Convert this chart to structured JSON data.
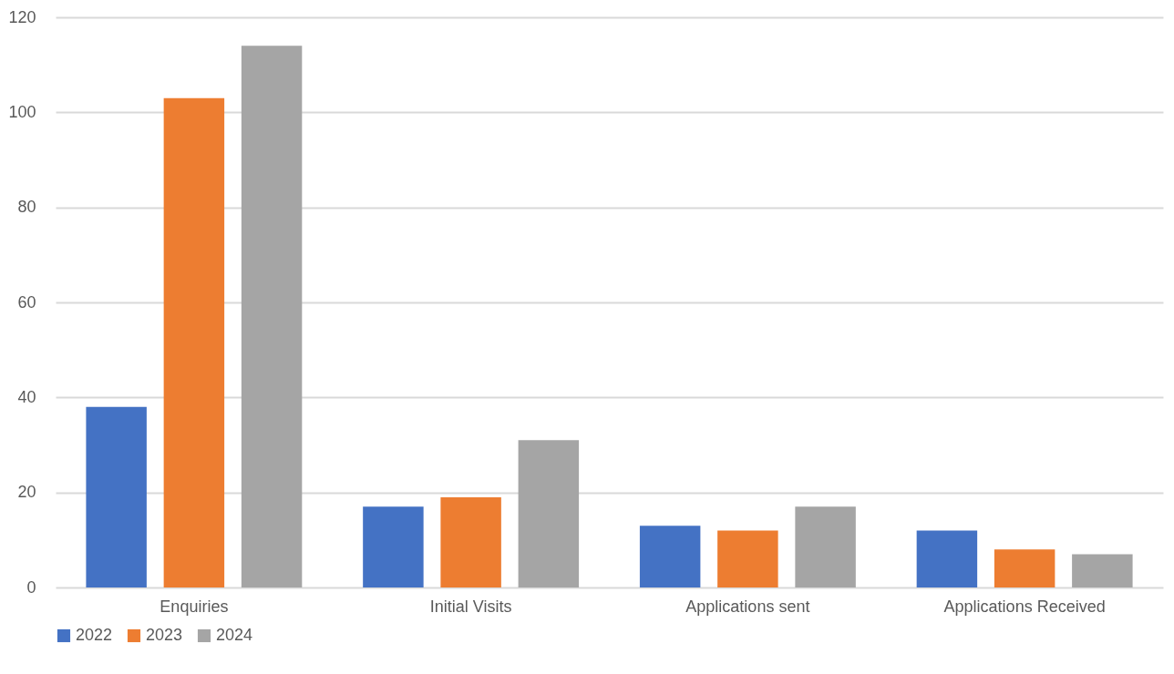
{
  "chart_data": {
    "type": "bar",
    "categories": [
      "Enquiries",
      "Initial Visits",
      "Applications sent",
      "Applications Received"
    ],
    "series": [
      {
        "name": "2022",
        "color": "#4472c4",
        "values": [
          38,
          17,
          13,
          12
        ]
      },
      {
        "name": "2023",
        "color": "#ed7d31",
        "values": [
          103,
          19,
          12,
          8
        ]
      },
      {
        "name": "2024",
        "color": "#a5a5a5",
        "values": [
          114,
          31,
          17,
          7
        ]
      }
    ],
    "ylim": [
      0,
      120
    ],
    "yticks": [
      0,
      20,
      40,
      60,
      80,
      100,
      120
    ],
    "grid": "y",
    "legend": "bottom"
  }
}
